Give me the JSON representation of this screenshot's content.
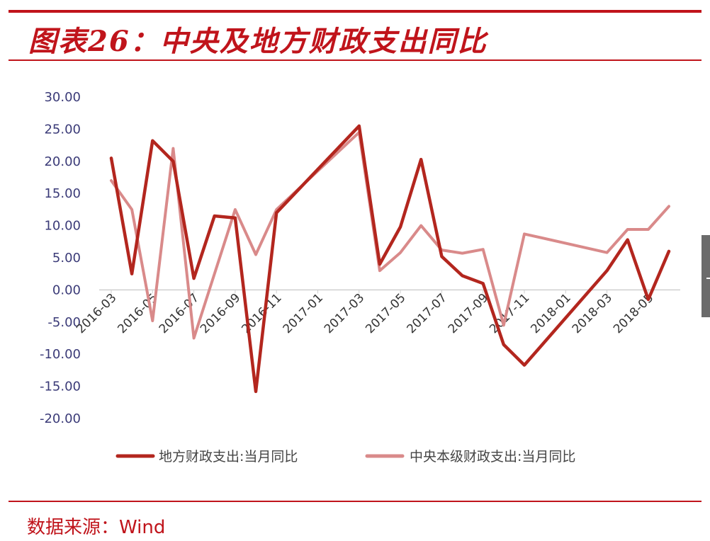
{
  "header": {
    "title": "图表26：中央及地方财政支出同比"
  },
  "footer": {
    "source": "数据来源：Wind"
  },
  "chart_data": {
    "type": "line",
    "ylim": [
      -20,
      30
    ],
    "yticks": [
      "30.00",
      "25.00",
      "20.00",
      "15.00",
      "10.00",
      "5.00",
      "0.00",
      "-5.00",
      "-10.00",
      "-15.00",
      "-20.00"
    ],
    "x": [
      "2016-03",
      "2016-04",
      "2016-05",
      "2016-06",
      "2016-07",
      "2016-08",
      "2016-09",
      "2016-10",
      "2016-11",
      "2017-03",
      "2017-04",
      "2017-05",
      "2017-06",
      "2017-07",
      "2017-08",
      "2017-09",
      "2017-10",
      "2017-11",
      "2018-03",
      "2018-04",
      "2018-05",
      "2018-06"
    ],
    "xtick_labels": [
      "2016-03",
      "2016-05",
      "2016-07",
      "2016-09",
      "2016-11",
      "2017-01",
      "2017-03",
      "2017-05",
      "2017-07",
      "2017-09",
      "2017-11",
      "2018-01",
      "2018-03",
      "2018-05"
    ],
    "grid": false,
    "legend_position": "bottom",
    "colors": {
      "local": "#b3261e",
      "central": "#d98a8a",
      "axis": "#cfcfcf",
      "accent": "#c0141b"
    },
    "series": [
      {
        "name": "地方财政支出:当月同比",
        "values": [
          20.5,
          2.5,
          23.2,
          20.0,
          1.8,
          11.5,
          11.2,
          -15.8,
          12.0,
          25.5,
          4.0,
          9.8,
          20.3,
          5.2,
          2.2,
          1.0,
          -8.5,
          -11.7,
          3.0,
          7.8,
          -1.5,
          6.0
        ]
      },
      {
        "name": "中央本级财政支出:当月同比",
        "values": [
          17.0,
          12.5,
          -4.8,
          22.0,
          -7.5,
          2.5,
          12.5,
          5.5,
          12.5,
          24.5,
          3.0,
          5.8,
          10.0,
          6.2,
          5.7,
          6.3,
          -5.5,
          8.7,
          5.8,
          9.4,
          9.4,
          13.0
        ]
      }
    ]
  }
}
